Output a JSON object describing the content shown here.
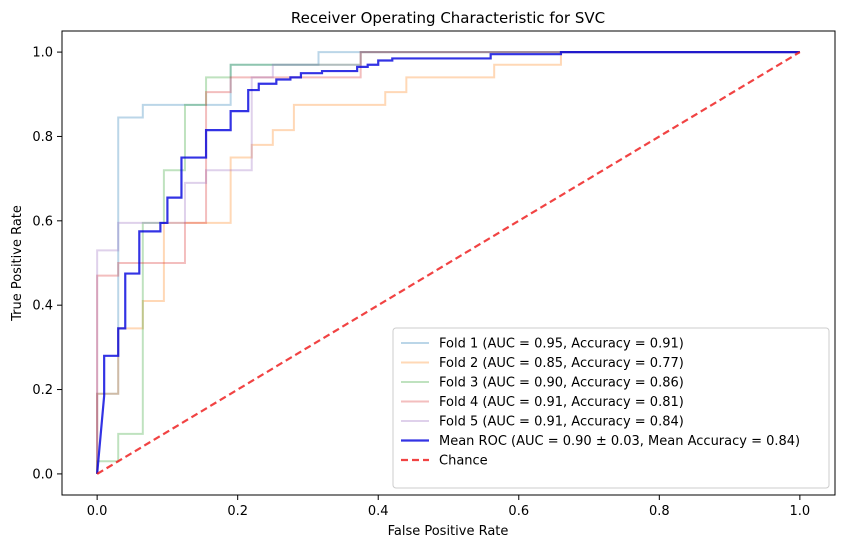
{
  "chart_data": {
    "type": "line",
    "title": "Receiver Operating Characteristic for SVC",
    "xlabel": "False Positive Rate",
    "ylabel": "True Positive Rate",
    "xlim": [
      -0.05,
      1.05
    ],
    "ylim": [
      -0.05,
      1.05
    ],
    "xticks": [
      0.0,
      0.2,
      0.4,
      0.6,
      0.8,
      1.0
    ],
    "xtick_labels": [
      "0.0",
      "0.2",
      "0.4",
      "0.6",
      "0.8",
      "1.0"
    ],
    "yticks": [
      0.0,
      0.2,
      0.4,
      0.6,
      0.8,
      1.0
    ],
    "ytick_labels": [
      "0.0",
      "0.2",
      "0.4",
      "0.6",
      "0.8",
      "1.0"
    ],
    "grid": false,
    "legend_position": "lower-right",
    "series": [
      {
        "name": "Fold 1 (AUC = 0.95, Accuracy = 0.91)",
        "color": "#1f77b4",
        "opacity": 0.3,
        "width": 2,
        "dash": "solid",
        "x": [
          0,
          0,
          0.03,
          0.03,
          0.065,
          0.065,
          0.19,
          0.19,
          0.315,
          0.315,
          0.375,
          0.375,
          1.0
        ],
        "y": [
          0,
          0.19,
          0.19,
          0.845,
          0.845,
          0.875,
          0.875,
          0.97,
          0.97,
          1.0,
          1.0,
          1.0,
          1.0
        ]
      },
      {
        "name": "Fold 2 (AUC = 0.85, Accuracy = 0.77)",
        "color": "#ff7f0e",
        "opacity": 0.3,
        "width": 2,
        "dash": "solid",
        "x": [
          0,
          0,
          0.03,
          0.03,
          0.065,
          0.065,
          0.095,
          0.095,
          0.19,
          0.19,
          0.22,
          0.22,
          0.25,
          0.25,
          0.28,
          0.28,
          0.41,
          0.41,
          0.44,
          0.44,
          0.565,
          0.565,
          0.66,
          0.66,
          1.0
        ],
        "y": [
          0,
          0.19,
          0.19,
          0.345,
          0.345,
          0.41,
          0.41,
          0.595,
          0.595,
          0.75,
          0.75,
          0.78,
          0.78,
          0.815,
          0.815,
          0.875,
          0.875,
          0.905,
          0.905,
          0.94,
          0.94,
          0.97,
          0.97,
          1.0,
          1.0
        ]
      },
      {
        "name": "Fold 3 (AUC = 0.90, Accuracy = 0.86)",
        "color": "#2ca02c",
        "opacity": 0.3,
        "width": 2,
        "dash": "solid",
        "x": [
          0,
          0,
          0.03,
          0.03,
          0.065,
          0.065,
          0.095,
          0.095,
          0.125,
          0.125,
          0.155,
          0.155,
          0.19,
          0.19,
          0.375,
          0.375,
          1.0
        ],
        "y": [
          0,
          0.03,
          0.03,
          0.095,
          0.095,
          0.595,
          0.595,
          0.72,
          0.72,
          0.875,
          0.875,
          0.94,
          0.94,
          0.97,
          0.97,
          1.0,
          1.0
        ]
      },
      {
        "name": "Fold 4 (AUC = 0.91, Accuracy = 0.81)",
        "color": "#d62728",
        "opacity": 0.3,
        "width": 2,
        "dash": "solid",
        "x": [
          0,
          0,
          0.03,
          0.03,
          0.125,
          0.125,
          0.155,
          0.155,
          0.19,
          0.19,
          0.375,
          0.375,
          1.0
        ],
        "y": [
          0,
          0.47,
          0.47,
          0.5,
          0.5,
          0.595,
          0.595,
          0.905,
          0.905,
          0.94,
          0.94,
          1.0,
          1.0
        ]
      },
      {
        "name": "Fold 5 (AUC = 0.91, Accuracy = 0.84)",
        "color": "#9467bd",
        "opacity": 0.3,
        "width": 2,
        "dash": "solid",
        "x": [
          0,
          0,
          0.03,
          0.03,
          0.125,
          0.125,
          0.155,
          0.155,
          0.22,
          0.22,
          0.25,
          0.25,
          0.375,
          0.375,
          1.0
        ],
        "y": [
          0,
          0.53,
          0.53,
          0.595,
          0.595,
          0.69,
          0.69,
          0.72,
          0.72,
          0.94,
          0.94,
          0.97,
          0.97,
          1.0,
          1.0
        ]
      },
      {
        "name": "Mean ROC (AUC = 0.90 ± 0.03, Mean Accuracy = 0.84)",
        "color": "#0000dd",
        "opacity": 0.8,
        "width": 2.2,
        "dash": "solid",
        "x": [
          0,
          0.01,
          0.01,
          0.03,
          0.03,
          0.04,
          0.04,
          0.06,
          0.06,
          0.075,
          0.075,
          0.09,
          0.09,
          0.1,
          0.1,
          0.12,
          0.12,
          0.135,
          0.135,
          0.155,
          0.155,
          0.18,
          0.18,
          0.19,
          0.19,
          0.215,
          0.215,
          0.23,
          0.23,
          0.255,
          0.255,
          0.275,
          0.275,
          0.29,
          0.29,
          0.305,
          0.305,
          0.32,
          0.32,
          0.37,
          0.37,
          0.385,
          0.385,
          0.4,
          0.4,
          0.42,
          0.42,
          0.45,
          0.45,
          0.56,
          0.56,
          0.66,
          0.66,
          1.0
        ],
        "y": [
          0,
          0.185,
          0.28,
          0.28,
          0.345,
          0.345,
          0.475,
          0.475,
          0.575,
          0.575,
          0.575,
          0.575,
          0.595,
          0.595,
          0.655,
          0.655,
          0.75,
          0.75,
          0.75,
          0.75,
          0.815,
          0.815,
          0.815,
          0.815,
          0.86,
          0.86,
          0.91,
          0.91,
          0.925,
          0.925,
          0.935,
          0.935,
          0.94,
          0.94,
          0.95,
          0.95,
          0.95,
          0.95,
          0.955,
          0.955,
          0.965,
          0.965,
          0.97,
          0.97,
          0.98,
          0.98,
          0.985,
          0.985,
          0.985,
          0.985,
          0.995,
          0.995,
          1.0,
          1.0
        ]
      },
      {
        "name": "Chance",
        "color": "#ee2222",
        "opacity": 0.85,
        "width": 2.2,
        "dash": "dashed",
        "x": [
          0,
          1
        ],
        "y": [
          0,
          1
        ]
      }
    ]
  }
}
